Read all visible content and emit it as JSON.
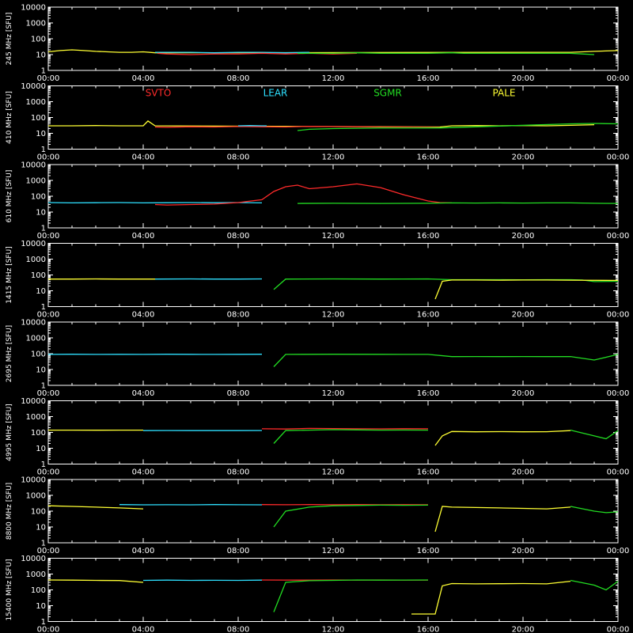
{
  "chart_data": {
    "type": "line",
    "x_ticks": [
      "00:00",
      "04:00",
      "08:00",
      "12:00",
      "16:00",
      "20:00",
      "00:00"
    ],
    "y_ticks": [
      "1",
      "10",
      "100",
      "1000",
      "10000"
    ],
    "ylim": [
      1,
      10000
    ],
    "y_scale": "log",
    "x_range_hours": [
      0,
      24
    ],
    "legend": [
      {
        "name": "SVTO",
        "color": "#ff2a2a"
      },
      {
        "name": "LEAR",
        "color": "#2ee0ff"
      },
      {
        "name": "SGMR",
        "color": "#22dd22"
      },
      {
        "name": "PALE",
        "color": "#ffff33"
      }
    ],
    "panels": [
      {
        "ylabel": "245 MHz [SFU]",
        "series": [
          {
            "station": "PALE",
            "x": [
              0,
              0.5,
              1,
              1.5,
              2,
              2.5,
              3,
              3.5,
              4,
              4.5,
              21.5,
              22,
              23,
              24
            ],
            "y": [
              15,
              18,
              20,
              18,
              16,
              15,
              14,
              14,
              15,
              13,
              14,
              14,
              16,
              18
            ]
          },
          {
            "station": "LEAR",
            "x": [
              4.5,
              6,
              7,
              8,
              9,
              10,
              11
            ],
            "y": [
              14,
              14,
              13,
              14,
              14,
              13,
              14
            ]
          },
          {
            "station": "SVTO",
            "x": [
              4.6,
              5,
              6,
              7,
              8,
              9,
              10,
              11,
              12,
              13
            ],
            "y": [
              12,
              11,
              10,
              11,
              11,
              12,
              11,
              12,
              11,
              12
            ]
          },
          {
            "station": "SGMR",
            "x": [
              10.5,
              12,
              13,
              14,
              15,
              16,
              17,
              17.5,
              19,
              20,
              21,
              22,
              22.5,
              23
            ],
            "y": [
              12,
              12,
              13,
              12,
              12,
              12,
              13,
              12,
              12,
              12,
              12,
              12,
              11,
              10
            ]
          }
        ]
      },
      {
        "ylabel": "410 MHz [SFU]",
        "series": [
          {
            "station": "PALE",
            "x": [
              0,
              1,
              2,
              3,
              4,
              4.2,
              4.5,
              16.5,
              17,
              18,
              19,
              20,
              21,
              22,
              23
            ],
            "y": [
              30,
              30,
              31,
              30,
              30,
              60,
              30,
              25,
              30,
              31,
              30,
              31,
              30,
              32,
              35
            ]
          },
          {
            "station": "SVTO",
            "x": [
              4.5,
              5,
              6,
              7,
              8,
              9,
              10,
              11,
              12,
              13,
              14,
              15,
              16,
              16.5
            ],
            "y": [
              25,
              24,
              26,
              25,
              27,
              26,
              25,
              28,
              27,
              26,
              25,
              25,
              24,
              23
            ]
          },
          {
            "station": "LEAR",
            "x": [
              8,
              8.5,
              9,
              9.2
            ],
            "y": [
              30,
              31,
              30,
              30
            ]
          },
          {
            "station": "SGMR",
            "x": [
              10.5,
              11,
              12,
              13,
              14,
              15,
              16,
              16.5,
              22,
              23,
              24
            ],
            "y": [
              15,
              18,
              20,
              21,
              22,
              22,
              22,
              22,
              40,
              42,
              40
            ]
          }
        ]
      },
      {
        "ylabel": "610 MHz [SFU]",
        "series": [
          {
            "station": "LEAR",
            "x": [
              0,
              1,
              2,
              3,
              4,
              5,
              6,
              7,
              8,
              9
            ],
            "y": [
              40,
              38,
              39,
              40,
              38,
              39,
              40,
              39,
              40,
              38
            ]
          },
          {
            "station": "SVTO",
            "x": [
              4.5,
              5,
              6,
              7,
              8,
              9,
              9.5,
              10,
              10.5,
              11,
              12,
              13,
              14,
              15,
              16,
              16.5,
              17
            ],
            "y": [
              30,
              28,
              30,
              32,
              40,
              60,
              200,
              400,
              500,
              300,
              400,
              600,
              350,
              120,
              50,
              40,
              38
            ]
          },
          {
            "station": "SGMR",
            "x": [
              10.5,
              12,
              14,
              16,
              17,
              18,
              19,
              20,
              21,
              22,
              23,
              24
            ],
            "y": [
              35,
              36,
              35,
              36,
              38,
              37,
              38,
              37,
              38,
              38,
              36,
              35
            ]
          }
        ]
      },
      {
        "ylabel": "1415 MHz [SFU]",
        "series": [
          {
            "station": "PALE",
            "x": [
              0,
              1,
              2,
              3,
              4,
              4.5
            ],
            "y": [
              55,
              55,
              56,
              55,
              55,
              55
            ]
          },
          {
            "station": "LEAR",
            "x": [
              4.5,
              6,
              7,
              8,
              9
            ],
            "y": [
              55,
              56,
              55,
              55,
              56
            ]
          },
          {
            "station": "SGMR",
            "x": [
              9.5,
              10,
              12,
              14,
              16,
              17,
              18,
              19,
              20,
              21,
              22,
              22.5,
              23,
              24
            ],
            "y": [
              12,
              55,
              56,
              55,
              56,
              50,
              50,
              50,
              49,
              50,
              50,
              48,
              38,
              40
            ]
          },
          {
            "station": "PALE",
            "x": [
              16.3,
              16.6,
              17,
              18,
              19,
              20,
              21,
              22,
              24
            ],
            "y": [
              3,
              40,
              48,
              48,
              47,
              48,
              48,
              47,
              45
            ]
          }
        ]
      },
      {
        "ylabel": "2695 MHz [SFU]",
        "series": [
          {
            "station": "LEAR",
            "x": [
              0,
              1,
              2,
              3,
              4,
              5,
              6,
              7,
              8,
              9
            ],
            "y": [
              90,
              92,
              90,
              91,
              90,
              92,
              91,
              90,
              91,
              92
            ]
          },
          {
            "station": "SGMR",
            "x": [
              9.5,
              10,
              12,
              14,
              16,
              17,
              18,
              19,
              20,
              21,
              22,
              23,
              24
            ],
            "y": [
              15,
              90,
              92,
              91,
              90,
              65,
              66,
              65,
              66,
              65,
              66,
              40,
              90
            ]
          }
        ]
      },
      {
        "ylabel": "4995 MHz [SFU]",
        "series": [
          {
            "station": "PALE",
            "x": [
              0,
              1,
              2,
              3,
              4
            ],
            "y": [
              140,
              140,
              138,
              140,
              139
            ]
          },
          {
            "station": "LEAR",
            "x": [
              4,
              5,
              6,
              7,
              8,
              9
            ],
            "y": [
              130,
              132,
              130,
              131,
              130,
              132
            ]
          },
          {
            "station": "SVTO",
            "x": [
              9,
              10,
              11,
              12,
              13,
              14,
              15,
              16
            ],
            "y": [
              170,
              165,
              180,
              175,
              170,
              168,
              172,
              170
            ]
          },
          {
            "station": "SGMR",
            "x": [
              9.5,
              10,
              11,
              12,
              13,
              14,
              15,
              16
            ],
            "y": [
              20,
              130,
              140,
              150,
              145,
              140,
              142,
              140
            ]
          },
          {
            "station": "PALE",
            "x": [
              16.3,
              16.6,
              17,
              18,
              19,
              20,
              21,
              22
            ],
            "y": [
              15,
              60,
              115,
              110,
              112,
              110,
              111,
              130
            ]
          },
          {
            "station": "SGMR",
            "x": [
              22,
              23,
              23.5,
              24
            ],
            "y": [
              140,
              60,
              40,
              130
            ]
          }
        ]
      },
      {
        "ylabel": "8800 MHz [SFU]",
        "series": [
          {
            "station": "PALE",
            "x": [
              0,
              1,
              2,
              3,
              4
            ],
            "y": [
              220,
              200,
              180,
              160,
              140
            ]
          },
          {
            "station": "LEAR",
            "x": [
              3,
              4,
              5,
              6,
              7,
              8,
              9
            ],
            "y": [
              260,
              250,
              255,
              250,
              260,
              255,
              250
            ]
          },
          {
            "station": "SVTO",
            "x": [
              9,
              10,
              11,
              12,
              13,
              14,
              15,
              16
            ],
            "y": [
              260,
              255,
              260,
              255,
              260,
              255,
              258,
              255
            ]
          },
          {
            "station": "SGMR",
            "x": [
              9.5,
              10,
              11,
              12,
              13,
              14,
              15,
              16
            ],
            "y": [
              10,
              100,
              180,
              220,
              230,
              240,
              235,
              240
            ]
          },
          {
            "station": "PALE",
            "x": [
              16.3,
              16.6,
              17,
              18,
              19,
              20,
              21,
              22
            ],
            "y": [
              5,
              200,
              180,
              170,
              160,
              150,
              140,
              180
            ]
          },
          {
            "station": "SGMR",
            "x": [
              22,
              23,
              23.5,
              24
            ],
            "y": [
              200,
              100,
              80,
              90
            ]
          }
        ]
      },
      {
        "ylabel": "15400 MHz [SFU]",
        "series": [
          {
            "station": "PALE",
            "x": [
              0,
              1,
              2,
              3,
              4
            ],
            "y": [
              420,
              410,
              400,
              390,
              300
            ]
          },
          {
            "station": "LEAR",
            "x": [
              4,
              5,
              6,
              7,
              8,
              9
            ],
            "y": [
              400,
              410,
              400,
              405,
              400,
              410
            ]
          },
          {
            "station": "SVTO",
            "x": [
              9,
              10,
              11,
              12,
              13,
              14,
              15,
              16
            ],
            "y": [
              420,
              415,
              410,
              420,
              415,
              420,
              418,
              415
            ]
          },
          {
            "station": "SGMR",
            "x": [
              9.5,
              10,
              11,
              12,
              13,
              14,
              15,
              16
            ],
            "y": [
              4,
              300,
              380,
              400,
              420,
              410,
              415,
              420
            ]
          },
          {
            "station": "PALE",
            "x": [
              15.3,
              15.6,
              16.3,
              16.6,
              17,
              18,
              19,
              20,
              21,
              22
            ],
            "y": [
              3,
              3,
              3,
              180,
              250,
              240,
              245,
              250,
              240,
              350
            ]
          },
          {
            "station": "SGMR",
            "x": [
              22,
              23,
              23.5,
              24
            ],
            "y": [
              400,
              200,
              100,
              350
            ]
          }
        ]
      }
    ]
  }
}
